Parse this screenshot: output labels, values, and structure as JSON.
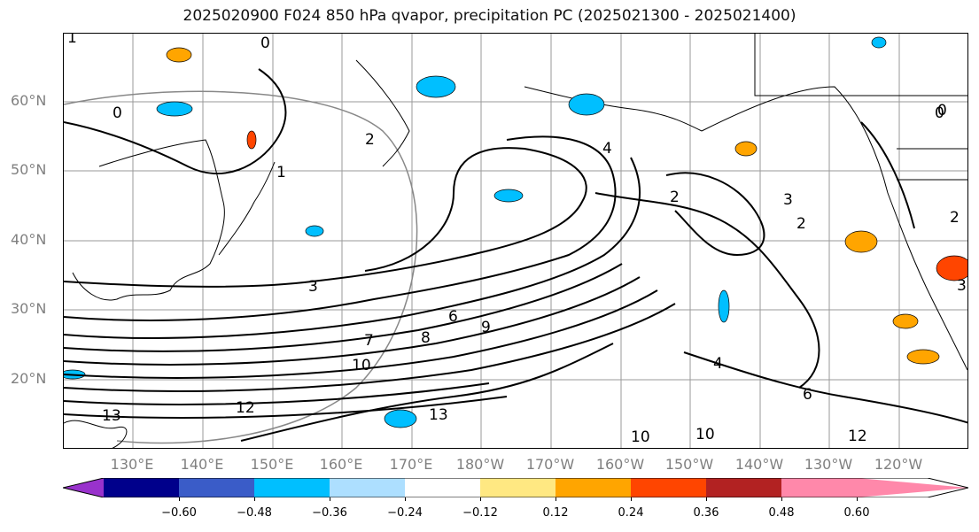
{
  "title": "2025020900 F024 850 hPa qvapor, precipitation PC (2025021300 - 2025021400)",
  "lat_labels": [
    "60°N",
    "50°N",
    "40°N",
    "30°N",
    "20°N"
  ],
  "lon_labels": [
    "130°E",
    "140°E",
    "150°E",
    "160°E",
    "170°E",
    "180°W",
    "170°W",
    "160°W",
    "150°W",
    "140°W",
    "130°W",
    "120°W"
  ],
  "colorbar": {
    "ticks": [
      "−0.60",
      "−0.48",
      "−0.36",
      "−0.24",
      "−0.12",
      "0.12",
      "0.24",
      "0.36",
      "0.48",
      "0.60"
    ],
    "colors": [
      "#9932CC",
      "#00008B",
      "#3A5CC8",
      "#00BFFF",
      "#ADDFFF",
      "#FFFFFF",
      "#FFE882",
      "#FFA500",
      "#FF4500",
      "#B22222",
      "#FF88AA"
    ]
  },
  "contour_labels": [
    "0",
    "0",
    "0",
    "0",
    "1",
    "1",
    "2",
    "2",
    "2",
    "2",
    "3",
    "3",
    "3",
    "4",
    "4",
    "6",
    "6",
    "7",
    "8",
    "9",
    "10",
    "10",
    "10",
    "12",
    "12",
    "13",
    "13"
  ]
}
